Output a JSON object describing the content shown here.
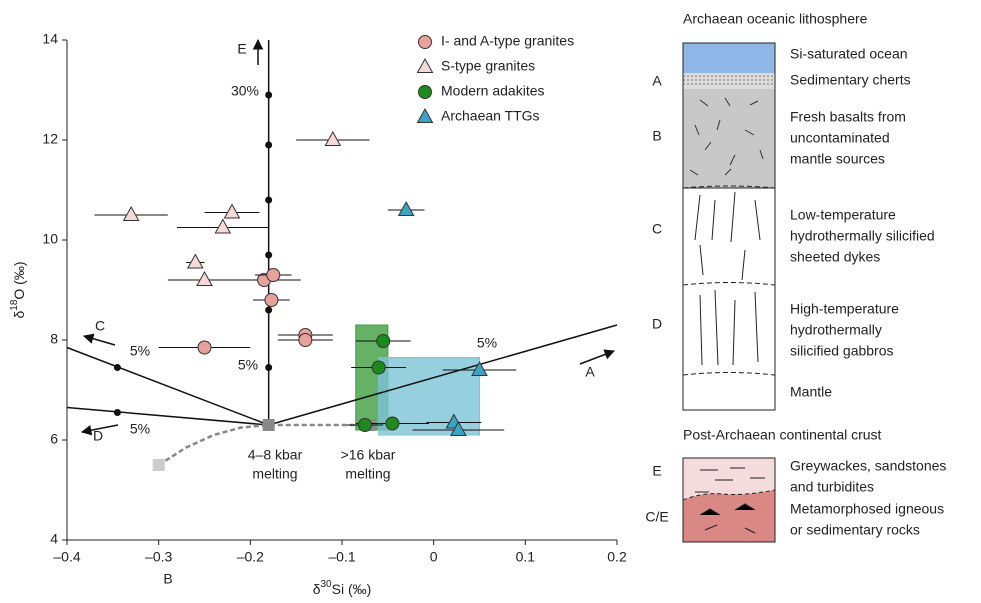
{
  "chart_data": {
    "type": "scatter",
    "x_label": [
      "δ",
      "30",
      "Si (‰)"
    ],
    "y_label": [
      "δ",
      "18",
      "O (‰)"
    ],
    "xlim": [
      -0.4,
      0.2
    ],
    "ylim": [
      4,
      14
    ],
    "xticks": [
      {
        "value": -0.4,
        "label": "–0.4"
      },
      {
        "value": -0.3,
        "label": "–0.3"
      },
      {
        "value": -0.2,
        "label": "–0.2"
      },
      {
        "value": -0.1,
        "label": "–0.1"
      },
      0,
      0.1,
      0.2
    ],
    "yticks": [
      4,
      6,
      8,
      10,
      12,
      14
    ],
    "series": [
      {
        "name": "I- and A-type granites",
        "marker": "circle",
        "color": "#e8a29c",
        "x": [
          -0.25,
          -0.14,
          -0.14,
          -0.185,
          -0.175,
          -0.177
        ],
        "y": [
          7.85,
          8.1,
          8.0,
          9.2,
          9.3,
          8.8
        ],
        "xerr": [
          0.05,
          0.03,
          0.03,
          0.04,
          0.02,
          0.02
        ]
      },
      {
        "name": "S-type granites",
        "marker": "triangle",
        "color": "#f6d9d8",
        "x": [
          -0.11,
          -0.33,
          -0.22,
          -0.23,
          -0.26,
          -0.25
        ],
        "y": [
          12.0,
          10.5,
          10.55,
          10.25,
          9.55,
          9.2
        ],
        "xerr": [
          0.04,
          0.04,
          0.03,
          0.05,
          0.01,
          0.04
        ]
      },
      {
        "name": "Modern adakites",
        "marker": "circle",
        "color": "#1d8a1d",
        "x": [
          -0.055,
          -0.06,
          -0.045,
          -0.075
        ],
        "y": [
          7.98,
          7.45,
          6.33,
          6.3
        ],
        "xerr": [
          0.03,
          0.03,
          0.04,
          0.02
        ]
      },
      {
        "name": "Archaean TTGs",
        "marker": "triangle",
        "color": "#3ba4c4",
        "x": [
          -0.03,
          0.05,
          0.022,
          0.027
        ],
        "y": [
          10.6,
          7.4,
          6.35,
          6.2
        ],
        "xerr": [
          0.02,
          0.04,
          0.03,
          0.05
        ]
      }
    ],
    "boxes": [
      {
        "color": "#3f9e3f",
        "x": [
          -0.085,
          -0.05
        ],
        "y": [
          6.2,
          8.3
        ]
      },
      {
        "color": "#7cc3d6",
        "x": [
          -0.06,
          0.05
        ],
        "y": [
          6.1,
          7.65
        ]
      }
    ],
    "mixing_lines": [
      {
        "x": [
          -0.18,
          -0.18
        ],
        "y": [
          6.3,
          14
        ]
      },
      {
        "x": [
          -0.18,
          -0.4
        ],
        "y": [
          6.3,
          7.85
        ]
      },
      {
        "x": [
          -0.18,
          -0.4
        ],
        "y": [
          6.3,
          6.65
        ]
      },
      {
        "x": [
          -0.18,
          0.2
        ],
        "y": [
          6.3,
          8.3
        ]
      }
    ],
    "mixing_dots": {
      "x": [
        -0.18,
        -0.18,
        -0.18,
        -0.18,
        -0.18,
        -0.18,
        -0.345,
        -0.345
      ],
      "y": [
        7.45,
        8.6,
        9.7,
        10.8,
        11.9,
        12.9,
        7.45,
        6.55
      ]
    },
    "melting_path": {
      "x": [
        -0.3,
        -0.27,
        -0.24,
        -0.21,
        -0.18,
        -0.07
      ],
      "y": [
        5.5,
        5.85,
        6.1,
        6.25,
        6.3,
        6.3
      ]
    },
    "annotations": [
      "E",
      "30%",
      "5%",
      "C",
      "5%",
      "D",
      "5%",
      "A",
      "5%",
      "B",
      "4–8 kbar",
      "melting",
      ">16 kbar",
      "melting"
    ]
  },
  "schematic": {
    "title_top": "Archaean oceanic lithosphere",
    "title_bottom": "Post-Archaean continental crust",
    "letters": [
      "A",
      "B",
      "C",
      "D",
      "E",
      "C/E"
    ],
    "layers": [
      [
        "Si-saturated ocean"
      ],
      [
        "Sedimentary cherts"
      ],
      [
        "Fresh basalts from",
        "uncontaminated",
        "mantle sources"
      ],
      [
        "Low-temperature",
        "hydrothermally silicified",
        "sheeted dykes"
      ],
      [
        "High-temperature",
        "hydrothermally",
        "silicified gabbros"
      ],
      [
        "Mantle"
      ],
      [
        "Greywackes, sandstones",
        "and turbidites"
      ],
      [
        "Metamorphosed igneous",
        "or sedimentary rocks"
      ]
    ]
  }
}
